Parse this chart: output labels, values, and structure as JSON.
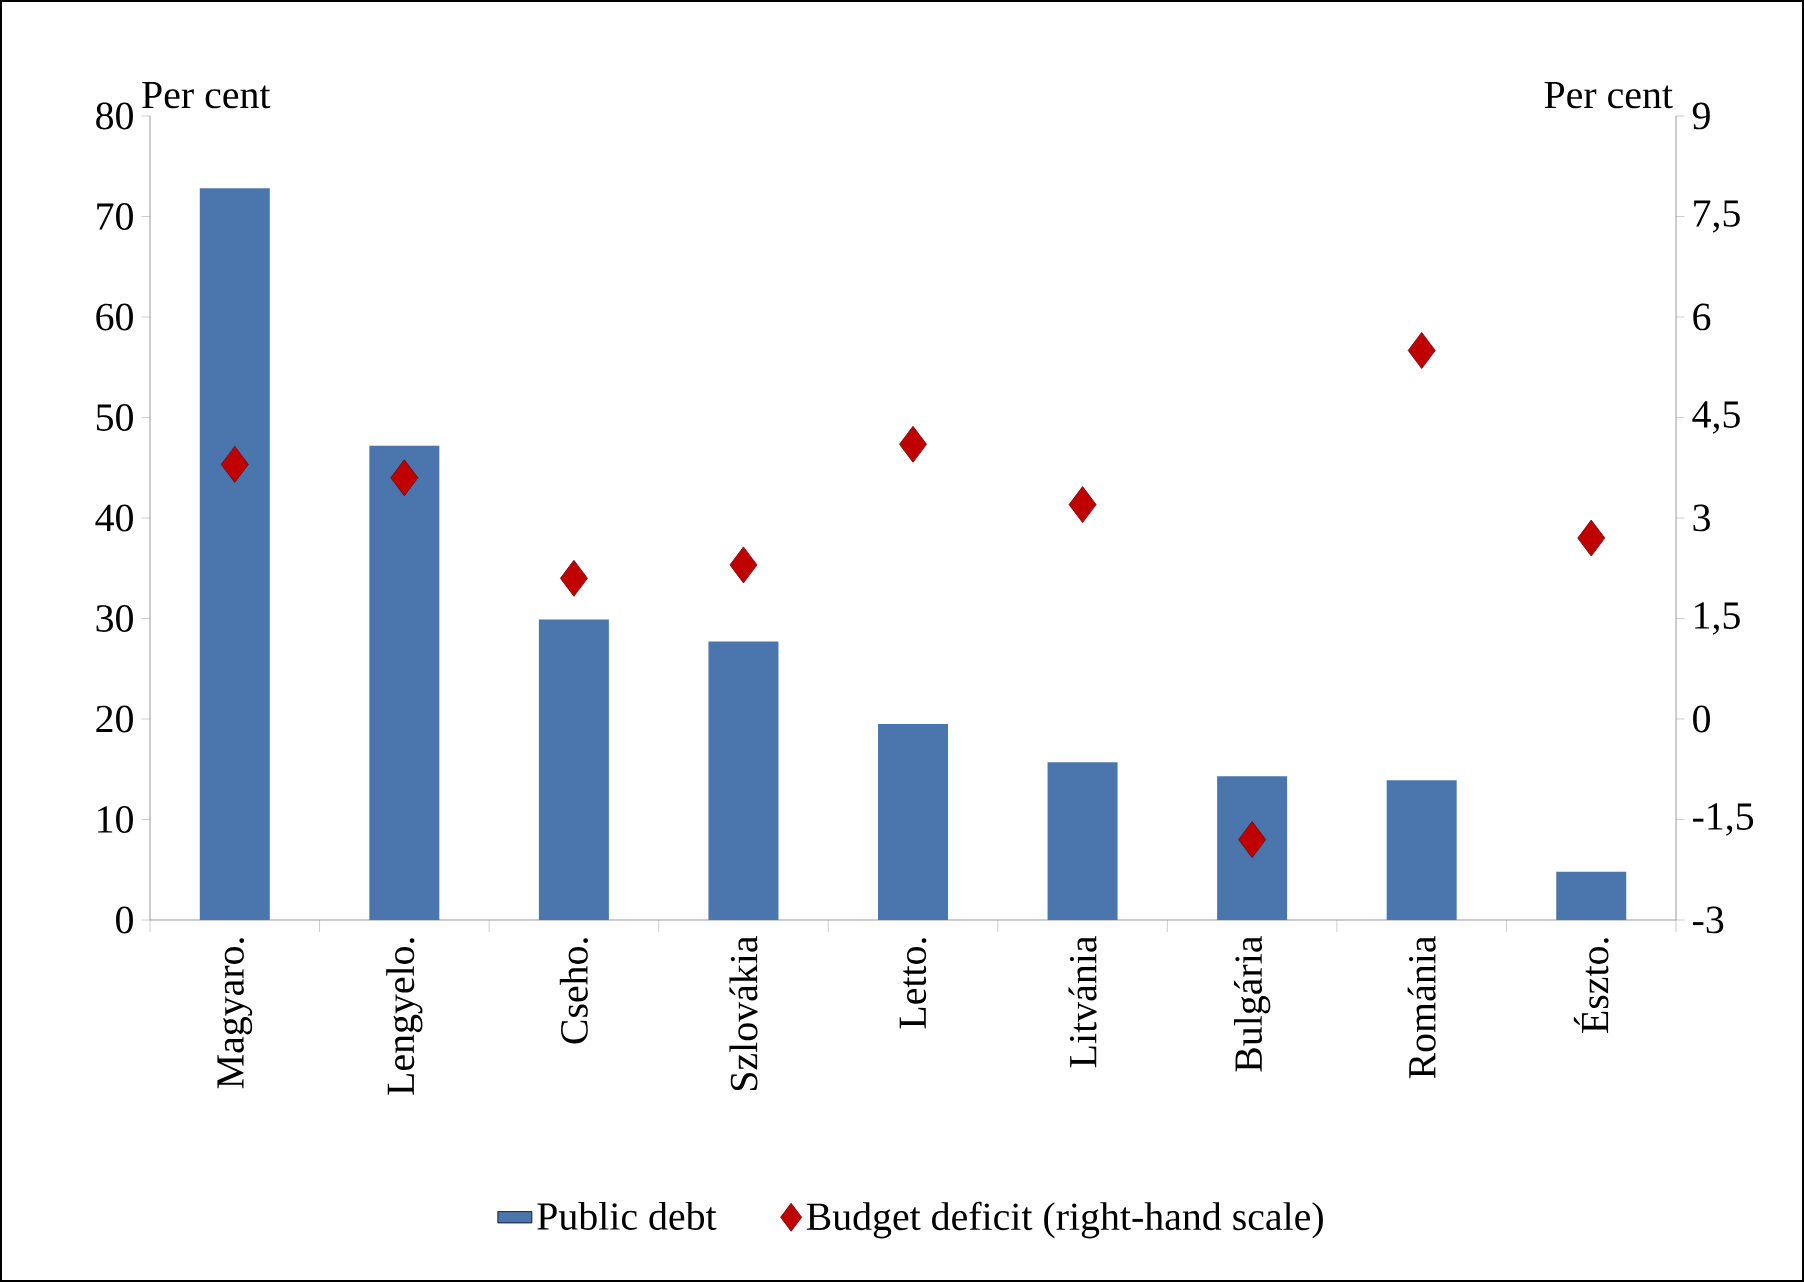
{
  "chart_data": {
    "type": "bar",
    "categories": [
      "Magyaro.",
      "Lengyelo.",
      "Cseho.",
      "Szlovákia",
      "Letto.",
      "Litvánia",
      "Bulgária",
      "Románia",
      "Észto."
    ],
    "series": [
      {
        "name": "Public debt",
        "color": "#4a76ad",
        "values": [
          72.8,
          47.2,
          29.9,
          27.7,
          19.5,
          15.7,
          14.3,
          13.9,
          4.8
        ]
      },
      {
        "name": "Budget deficit (right-hand scale)",
        "type": "scatter",
        "axis": "y2",
        "marker": "diamond",
        "color": "#c00000",
        "values": [
          3.8,
          3.6,
          2.1,
          2.3,
          4.1,
          3.2,
          -1.8,
          5.5,
          2.7
        ]
      }
    ],
    "ylabel": "Per cent",
    "y2label": "Per cent",
    "ylim": [
      0,
      80
    ],
    "yticks": [
      0,
      10,
      20,
      30,
      40,
      50,
      60,
      70,
      80
    ],
    "y2lim": [
      -3,
      9
    ],
    "y2ticks": [
      -3,
      {
        "value": -1.5,
        "label": "-1,5"
      },
      0,
      {
        "value": 1.5,
        "label": "1,5"
      },
      3,
      {
        "value": 4.5,
        "label": "4,5"
      },
      6,
      {
        "value": 7.5,
        "label": "7,5"
      },
      9
    ],
    "legend": "bottom"
  }
}
